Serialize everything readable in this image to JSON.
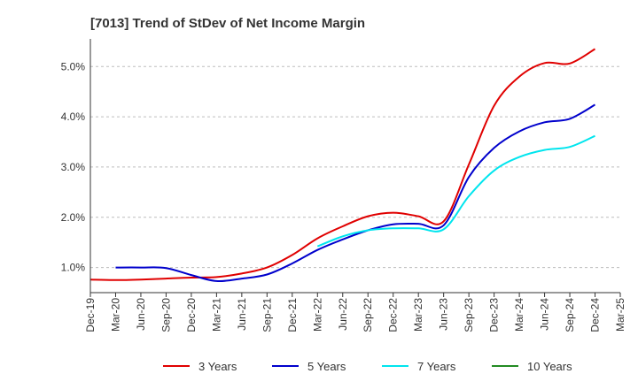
{
  "chart_data": {
    "type": "line",
    "title": "[7013]  Trend of StDev of Net Income Margin",
    "xlabel": "",
    "ylabel": "",
    "x_tick_labels": [
      "Dec-19",
      "Mar-20",
      "Jun-20",
      "Sep-20",
      "Dec-20",
      "Mar-21",
      "Jun-21",
      "Sep-21",
      "Dec-21",
      "Mar-22",
      "Jun-22",
      "Sep-22",
      "Dec-22",
      "Mar-23",
      "Jun-23",
      "Sep-23",
      "Dec-23",
      "Mar-24",
      "Jun-24",
      "Sep-24",
      "Dec-24",
      "Mar-25"
    ],
    "y_tick_labels": [
      "1.0%",
      "2.0%",
      "3.0%",
      "4.0%",
      "5.0%"
    ],
    "y_ticks": [
      1.0,
      2.0,
      3.0,
      4.0,
      5.0
    ],
    "ylim": [
      0.5,
      5.55
    ],
    "grid": "horizontal dashed",
    "legend_position": "bottom",
    "series": [
      {
        "name": "3 Years",
        "color": "#e00000",
        "x": [
          "Dec-19",
          "Mar-20",
          "Jun-20",
          "Sep-20",
          "Dec-20",
          "Mar-21",
          "Jun-21",
          "Sep-21",
          "Dec-21",
          "Mar-22",
          "Jun-22",
          "Sep-22",
          "Dec-22",
          "Mar-23",
          "Jun-23",
          "Sep-23",
          "Dec-23",
          "Mar-24",
          "Jun-24",
          "Sep-24",
          "Dec-24"
        ],
        "values": [
          0.76,
          0.75,
          0.76,
          0.78,
          0.8,
          0.81,
          0.88,
          1.0,
          1.25,
          1.58,
          1.82,
          2.02,
          2.09,
          2.02,
          1.92,
          3.05,
          4.22,
          4.8,
          5.07,
          5.06,
          5.35
        ]
      },
      {
        "name": "5 Years",
        "color": "#0000cc",
        "x": [
          "Mar-20",
          "Jun-20",
          "Sep-20",
          "Dec-20",
          "Mar-21",
          "Jun-21",
          "Sep-21",
          "Dec-21",
          "Mar-22",
          "Jun-22",
          "Sep-22",
          "Dec-22",
          "Mar-23",
          "Jun-23",
          "Sep-23",
          "Dec-23",
          "Mar-24",
          "Jun-24",
          "Sep-24",
          "Dec-24"
        ],
        "values": [
          1.0,
          1.0,
          0.99,
          0.85,
          0.73,
          0.78,
          0.86,
          1.08,
          1.35,
          1.56,
          1.74,
          1.86,
          1.87,
          1.84,
          2.8,
          3.38,
          3.71,
          3.89,
          3.96,
          4.24
        ]
      },
      {
        "name": "7 Years",
        "color": "#00e5ee",
        "x": [
          "Mar-22",
          "Jun-22",
          "Sep-22",
          "Dec-22",
          "Mar-23",
          "Jun-23",
          "Sep-23",
          "Dec-23",
          "Mar-24",
          "Jun-24",
          "Sep-24",
          "Dec-24"
        ],
        "values": [
          1.42,
          1.62,
          1.74,
          1.78,
          1.78,
          1.76,
          2.42,
          2.93,
          3.2,
          3.34,
          3.4,
          3.62
        ]
      },
      {
        "name": "10 Years",
        "color": "#228b22",
        "x": [],
        "values": []
      }
    ]
  }
}
